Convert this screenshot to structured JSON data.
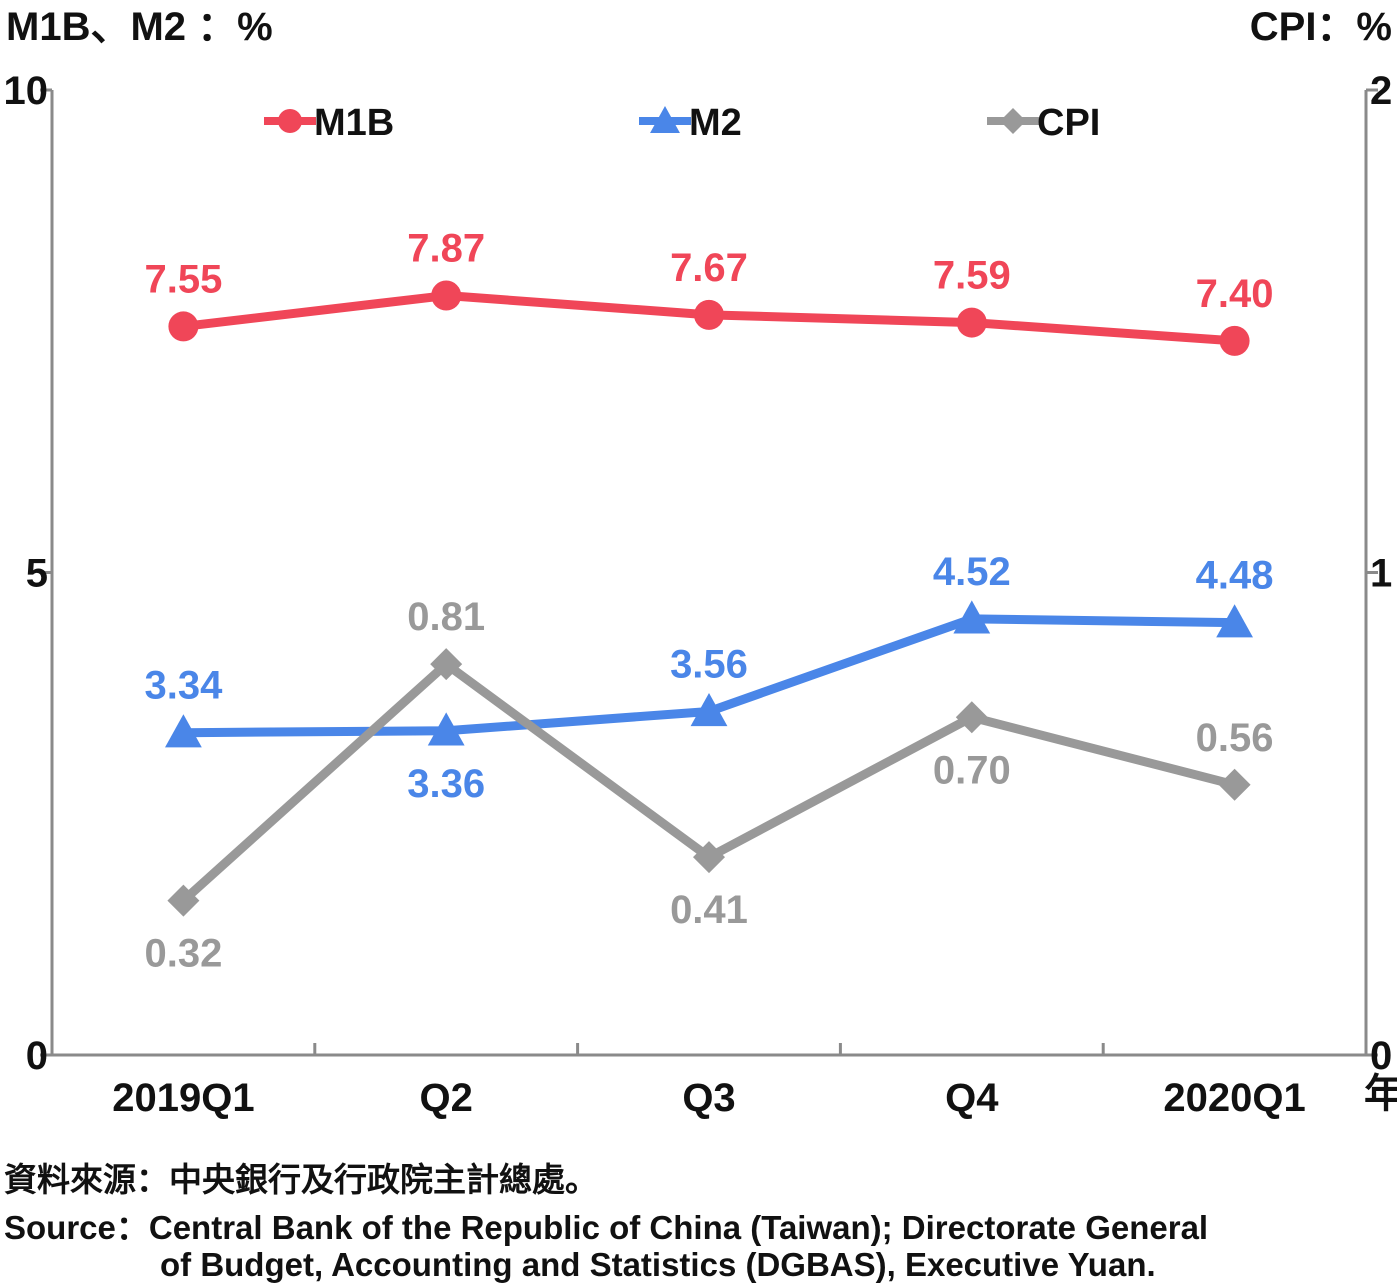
{
  "chart_data": {
    "type": "line",
    "left_axis_title": "M1B、M2 ：%",
    "right_axis_title": "CPI：%",
    "categories": [
      "2019Q1",
      "Q2",
      "Q3",
      "Q4",
      "2020Q1"
    ],
    "x_unit_label": "年",
    "y_left_ticks": [
      "0",
      "5",
      "10"
    ],
    "y_right_ticks": [
      "0",
      "1",
      "2"
    ],
    "ylim_left": [
      0,
      10
    ],
    "ylim_right": [
      0,
      2
    ],
    "grid": false,
    "legend_position": "top",
    "series": [
      {
        "name": "M1B",
        "axis": "left",
        "marker": "circle",
        "color": "#f04658",
        "values": [
          7.55,
          7.87,
          7.67,
          7.59,
          7.4
        ],
        "labels": [
          "7.55",
          "7.87",
          "7.67",
          "7.59",
          "7.40"
        ]
      },
      {
        "name": "M2",
        "axis": "left",
        "marker": "triangle",
        "color": "#4a86e8",
        "values": [
          3.34,
          3.36,
          3.56,
          4.52,
          4.48
        ],
        "labels": [
          "3.34",
          "3.36",
          "3.56",
          "4.52",
          "4.48"
        ]
      },
      {
        "name": "CPI",
        "axis": "right",
        "marker": "diamond",
        "color": "#999999",
        "values": [
          0.32,
          0.81,
          0.41,
          0.7,
          0.56
        ],
        "labels": [
          "0.32",
          "0.81",
          "0.41",
          "0.70",
          "0.56"
        ]
      }
    ]
  },
  "source": {
    "zh": "資料來源：中央銀行及行政院主計總處。",
    "en_line1": "Source：Central Bank of the Republic of China (Taiwan); Directorate General",
    "en_line2": "of Budget, Accounting and Statistics (DGBAS), Executive Yuan."
  }
}
